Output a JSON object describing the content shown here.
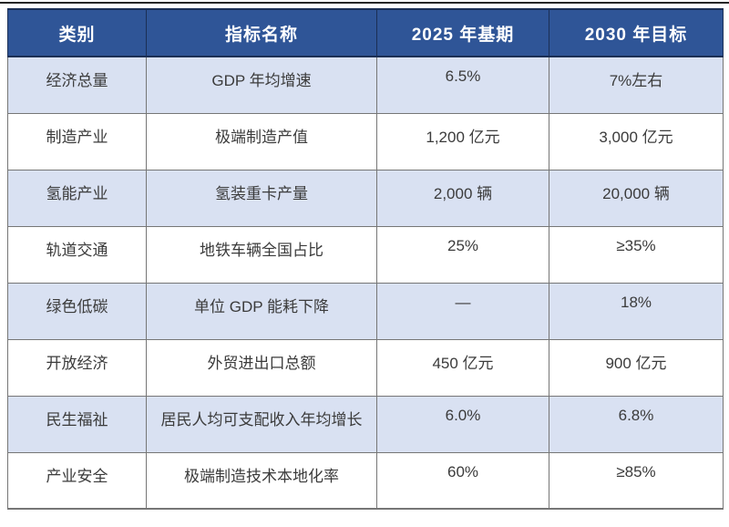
{
  "colors": {
    "header_bg": "#2F5597",
    "header_text": "#FFFFFF",
    "header_border": "#1B2F55",
    "row_alt_bg": "#D9E1F2",
    "row_bg": "#FFFFFF",
    "cell_border": "#767676",
    "cell_text": "#3B3B3B",
    "top_rule": "#262626",
    "page_bg": "#FFFFFF"
  },
  "table": {
    "columns": [
      "类别",
      "指标名称",
      "2025 年基期",
      "2030 年目标"
    ],
    "rows": [
      {
        "category": "经济总量",
        "indicator": "GDP 年均增速",
        "base_2025": "6.5%",
        "target_2030": "7%左右"
      },
      {
        "category": "制造产业",
        "indicator": "极端制造产值",
        "base_2025": "1,200 亿元",
        "target_2030": "3,000 亿元"
      },
      {
        "category": "氢能产业",
        "indicator": "氢装重卡产量",
        "base_2025": "2,000 辆",
        "target_2030": "20,000 辆"
      },
      {
        "category": "轨道交通",
        "indicator": "地铁车辆全国占比",
        "base_2025": "25%",
        "target_2030": "≥35%"
      },
      {
        "category": "绿色低碳",
        "indicator": "单位 GDP 能耗下降",
        "base_2025": "—",
        "target_2030": "18%"
      },
      {
        "category": "开放经济",
        "indicator": "外贸进出口总额",
        "base_2025": "450 亿元",
        "target_2030": "900 亿元"
      },
      {
        "category": "民生福祉",
        "indicator": "居民人均可支配收入年均增长",
        "base_2025": "6.0%",
        "target_2030": "6.8%"
      },
      {
        "category": "产业安全",
        "indicator": "极端制造技术本地化率",
        "base_2025": "60%",
        "target_2030": "≥85%"
      }
    ]
  },
  "chart_data": {
    "type": "table",
    "title": "",
    "columns": [
      "类别",
      "指标名称",
      "2025 年基期",
      "2030 年目标"
    ],
    "rows": [
      [
        "经济总量",
        "GDP 年均增速",
        "6.5%",
        "7%左右"
      ],
      [
        "制造产业",
        "极端制造产值",
        "1,200 亿元",
        "3,000 亿元"
      ],
      [
        "氢能产业",
        "氢装重卡产量",
        "2,000 辆",
        "20,000 辆"
      ],
      [
        "轨道交通",
        "地铁车辆全国占比",
        "25%",
        "≥35%"
      ],
      [
        "绿色低碳",
        "单位 GDP 能耗下降",
        "—",
        "18%"
      ],
      [
        "开放经济",
        "外贸进出口总额",
        "450 亿元",
        "900 亿元"
      ],
      [
        "民生福祉",
        "居民人均可支配收入年均增长",
        "6.0%",
        "6.8%"
      ],
      [
        "产业安全",
        "极端制造技术本地化率",
        "60%",
        "≥85%"
      ]
    ]
  }
}
